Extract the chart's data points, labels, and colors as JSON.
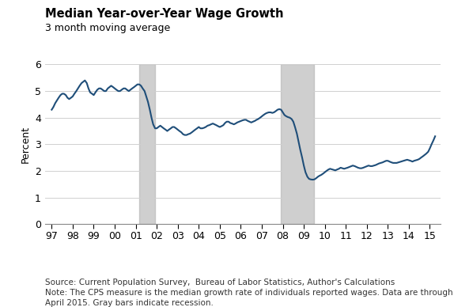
{
  "title": "Median Year-over-Year Wage Growth",
  "subtitle": "3 month moving average",
  "ylabel": "Percent",
  "source_text": "Source: Current Population Survey,  Bureau of Labor Statistics, Author's Calculations\nNote: The CPS measure is the median growth rate of individuals reported wages. Data are through\nApril 2015. Gray bars indicate recession.",
  "line_color": "#1f4e79",
  "recession_color": "#b0b0b0",
  "recession_alpha": 0.6,
  "recessions": [
    {
      "start": 2001.17,
      "end": 2001.92
    },
    {
      "start": 2007.92,
      "end": 2009.5
    }
  ],
  "xlim": [
    1996.7,
    2015.5
  ],
  "ylim": [
    0,
    6
  ],
  "yticks": [
    0,
    1,
    2,
    3,
    4,
    5,
    6
  ],
  "xtick_labels": [
    "97",
    "98",
    "99",
    "00",
    "01",
    "02",
    "03",
    "04",
    "05",
    "06",
    "07",
    "08",
    "09",
    "10",
    "11",
    "12",
    "13",
    "14",
    "15"
  ],
  "xtick_values": [
    1997,
    1998,
    1999,
    2000,
    2001,
    2002,
    2003,
    2004,
    2005,
    2006,
    2007,
    2008,
    2009,
    2010,
    2011,
    2012,
    2013,
    2014,
    2015
  ],
  "data_x": [
    1997.0,
    1997.08,
    1997.17,
    1997.25,
    1997.33,
    1997.42,
    1997.5,
    1997.58,
    1997.67,
    1997.75,
    1997.83,
    1997.92,
    1998.0,
    1998.08,
    1998.17,
    1998.25,
    1998.33,
    1998.42,
    1998.5,
    1998.58,
    1998.67,
    1998.75,
    1998.83,
    1998.92,
    1999.0,
    1999.08,
    1999.17,
    1999.25,
    1999.33,
    1999.42,
    1999.5,
    1999.58,
    1999.67,
    1999.75,
    1999.83,
    1999.92,
    2000.0,
    2000.08,
    2000.17,
    2000.25,
    2000.33,
    2000.42,
    2000.5,
    2000.58,
    2000.67,
    2000.75,
    2000.83,
    2000.92,
    2001.0,
    2001.08,
    2001.17,
    2001.25,
    2001.33,
    2001.42,
    2001.5,
    2001.58,
    2001.67,
    2001.75,
    2001.83,
    2001.92,
    2002.0,
    2002.08,
    2002.17,
    2002.25,
    2002.33,
    2002.42,
    2002.5,
    2002.58,
    2002.67,
    2002.75,
    2002.83,
    2002.92,
    2003.0,
    2003.08,
    2003.17,
    2003.25,
    2003.33,
    2003.42,
    2003.5,
    2003.58,
    2003.67,
    2003.75,
    2003.83,
    2003.92,
    2004.0,
    2004.08,
    2004.17,
    2004.25,
    2004.33,
    2004.42,
    2004.5,
    2004.58,
    2004.67,
    2004.75,
    2004.83,
    2004.92,
    2005.0,
    2005.08,
    2005.17,
    2005.25,
    2005.33,
    2005.42,
    2005.5,
    2005.58,
    2005.67,
    2005.75,
    2005.83,
    2005.92,
    2006.0,
    2006.08,
    2006.17,
    2006.25,
    2006.33,
    2006.42,
    2006.5,
    2006.58,
    2006.67,
    2006.75,
    2006.83,
    2006.92,
    2007.0,
    2007.08,
    2007.17,
    2007.25,
    2007.33,
    2007.42,
    2007.5,
    2007.58,
    2007.67,
    2007.75,
    2007.83,
    2007.92,
    2008.0,
    2008.08,
    2008.17,
    2008.25,
    2008.33,
    2008.42,
    2008.5,
    2008.58,
    2008.67,
    2008.75,
    2008.83,
    2008.92,
    2009.0,
    2009.08,
    2009.17,
    2009.25,
    2009.33,
    2009.42,
    2009.5,
    2009.58,
    2009.67,
    2009.75,
    2009.83,
    2009.92,
    2010.0,
    2010.08,
    2010.17,
    2010.25,
    2010.33,
    2010.42,
    2010.5,
    2010.58,
    2010.67,
    2010.75,
    2010.83,
    2010.92,
    2011.0,
    2011.08,
    2011.17,
    2011.25,
    2011.33,
    2011.42,
    2011.5,
    2011.58,
    2011.67,
    2011.75,
    2011.83,
    2011.92,
    2012.0,
    2012.08,
    2012.17,
    2012.25,
    2012.33,
    2012.42,
    2012.5,
    2012.58,
    2012.67,
    2012.75,
    2012.83,
    2012.92,
    2013.0,
    2013.08,
    2013.17,
    2013.25,
    2013.33,
    2013.42,
    2013.5,
    2013.58,
    2013.67,
    2013.75,
    2013.83,
    2013.92,
    2014.0,
    2014.08,
    2014.17,
    2014.25,
    2014.33,
    2014.42,
    2014.5,
    2014.58,
    2014.67,
    2014.75,
    2014.83,
    2014.92,
    2015.0,
    2015.08,
    2015.17,
    2015.25
  ],
  "data_y": [
    4.3,
    4.4,
    4.55,
    4.65,
    4.75,
    4.85,
    4.9,
    4.9,
    4.85,
    4.75,
    4.7,
    4.75,
    4.8,
    4.9,
    5.0,
    5.1,
    5.2,
    5.3,
    5.35,
    5.4,
    5.3,
    5.1,
    4.95,
    4.9,
    4.85,
    4.95,
    5.05,
    5.1,
    5.1,
    5.05,
    5.0,
    5.0,
    5.1,
    5.15,
    5.2,
    5.15,
    5.1,
    5.05,
    5.0,
    5.0,
    5.05,
    5.1,
    5.1,
    5.05,
    5.0,
    5.05,
    5.1,
    5.15,
    5.2,
    5.25,
    5.25,
    5.2,
    5.1,
    5.0,
    4.8,
    4.6,
    4.3,
    4.0,
    3.75,
    3.6,
    3.6,
    3.65,
    3.7,
    3.65,
    3.6,
    3.55,
    3.5,
    3.55,
    3.6,
    3.65,
    3.65,
    3.6,
    3.55,
    3.5,
    3.45,
    3.38,
    3.35,
    3.35,
    3.38,
    3.4,
    3.45,
    3.5,
    3.55,
    3.6,
    3.65,
    3.6,
    3.6,
    3.62,
    3.65,
    3.7,
    3.72,
    3.75,
    3.78,
    3.75,
    3.72,
    3.68,
    3.65,
    3.68,
    3.72,
    3.8,
    3.85,
    3.85,
    3.8,
    3.78,
    3.75,
    3.78,
    3.82,
    3.85,
    3.88,
    3.9,
    3.92,
    3.92,
    3.88,
    3.85,
    3.82,
    3.85,
    3.88,
    3.92,
    3.95,
    4.0,
    4.05,
    4.1,
    4.15,
    4.18,
    4.2,
    4.2,
    4.18,
    4.2,
    4.25,
    4.3,
    4.32,
    4.3,
    4.2,
    4.1,
    4.05,
    4.02,
    4.0,
    3.95,
    3.85,
    3.65,
    3.4,
    3.1,
    2.8,
    2.5,
    2.2,
    1.95,
    1.78,
    1.7,
    1.68,
    1.67,
    1.68,
    1.72,
    1.78,
    1.82,
    1.85,
    1.9,
    1.95,
    2.0,
    2.05,
    2.08,
    2.06,
    2.04,
    2.02,
    2.05,
    2.08,
    2.12,
    2.1,
    2.08,
    2.1,
    2.12,
    2.15,
    2.18,
    2.2,
    2.18,
    2.15,
    2.12,
    2.1,
    2.1,
    2.12,
    2.15,
    2.18,
    2.2,
    2.18,
    2.18,
    2.2,
    2.22,
    2.25,
    2.28,
    2.3,
    2.32,
    2.35,
    2.38,
    2.38,
    2.35,
    2.32,
    2.3,
    2.3,
    2.3,
    2.32,
    2.34,
    2.36,
    2.38,
    2.4,
    2.42,
    2.4,
    2.38,
    2.35,
    2.38,
    2.4,
    2.42,
    2.45,
    2.5,
    2.55,
    2.6,
    2.65,
    2.72,
    2.85,
    3.0,
    3.15,
    3.3
  ]
}
